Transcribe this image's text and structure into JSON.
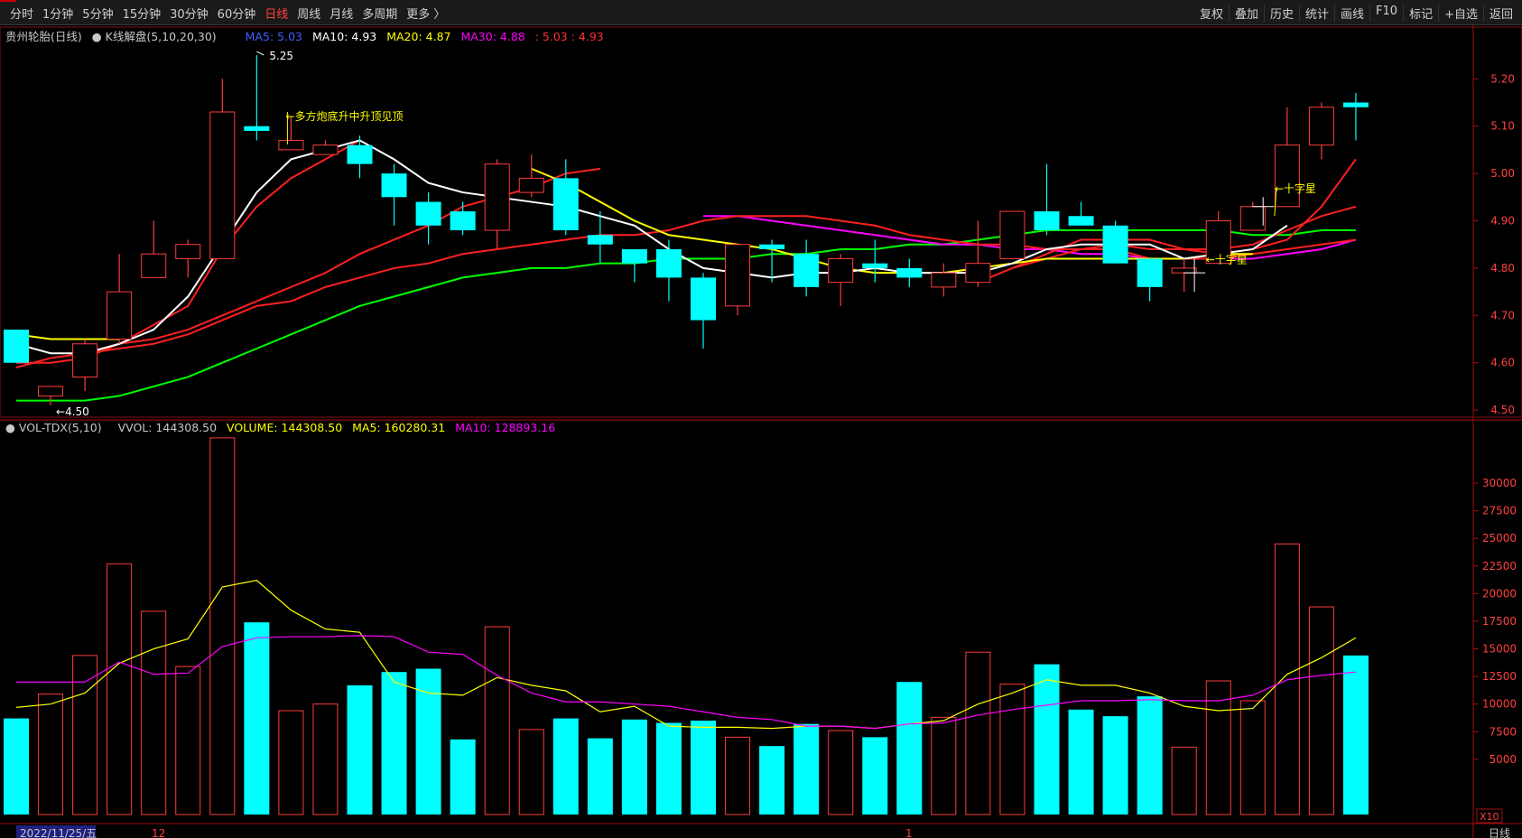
{
  "toolbar": {
    "periods": [
      "分时",
      "1分钟",
      "5分钟",
      "15分钟",
      "30分钟",
      "60分钟",
      "日线",
      "周线",
      "月线",
      "多周期",
      "更多 〉"
    ],
    "active_period": "日线",
    "tools": [
      "复权",
      "叠加",
      "历史",
      "统计",
      "画线",
      "F10",
      "标记",
      "+自选",
      "返回"
    ]
  },
  "main_legend": {
    "stock": "贵州轮胎(日线)",
    "indicator": "K线解盘(5,10,20,30)",
    "ma5": "MA5: 5.03",
    "ma10": "MA10: 4.93",
    "ma20": "MA20: 4.87",
    "ma30": "MA30: 4.88",
    "extra": ": 5.03 : 4.93"
  },
  "vol_legend": {
    "name": "VOL-TDX(5,10)",
    "vvol": "VVOL: 144308.50",
    "volume": "VOLUME: 144308.50",
    "ma5": "MA5: 160280.31",
    "ma10": "MA10: 128893.16"
  },
  "annotations": {
    "high": "5.25",
    "low": "←4.50",
    "pattern1": "←多方炮底升中升顶见顶",
    "doji1": "←十字星",
    "doji2": "←十字星"
  },
  "footer": {
    "date": "2022/11/25/五",
    "month1": "12",
    "month2": "1",
    "period_label": "日线",
    "unit": "X10"
  },
  "colors": {
    "up": "#ff3c3c",
    "down": "#00ffff",
    "ma5": "#ffffff",
    "ma10": "#ffff00",
    "ma20": "#ff00ff",
    "ma30": "#00ff00",
    "ma_red": "#ff2020"
  },
  "chart_data": {
    "type": "candlestick",
    "price_axis": {
      "ticks": [
        4.5,
        4.6,
        4.7,
        4.8,
        4.9,
        5.0,
        5.1,
        5.2
      ],
      "range": [
        4.485,
        5.275
      ]
    },
    "volume_axis": {
      "ticks": [
        5000,
        7500,
        10000,
        12500,
        15000,
        17500,
        20000,
        22500,
        25000,
        27500,
        30000
      ],
      "range": [
        0,
        34500
      ]
    },
    "candles": [
      {
        "o": 4.67,
        "h": 4.67,
        "l": 4.6,
        "c": 4.6,
        "v": 8700
      },
      {
        "o": 4.53,
        "h": 4.55,
        "l": 4.51,
        "c": 4.55,
        "v": 10900
      },
      {
        "o": 4.57,
        "h": 4.65,
        "l": 4.54,
        "c": 4.64,
        "v": 14400
      },
      {
        "o": 4.65,
        "h": 4.83,
        "l": 4.64,
        "c": 4.75,
        "v": 22700
      },
      {
        "o": 4.78,
        "h": 4.9,
        "l": 4.78,
        "c": 4.83,
        "v": 18400
      },
      {
        "o": 4.82,
        "h": 4.86,
        "l": 4.78,
        "c": 4.85,
        "v": 13400
      },
      {
        "o": 4.82,
        "h": 5.2,
        "l": 4.82,
        "c": 5.13,
        "v": 34100
      },
      {
        "o": 5.1,
        "h": 5.25,
        "l": 5.07,
        "c": 5.09,
        "v": 17400
      },
      {
        "o": 5.05,
        "h": 5.12,
        "l": 5.05,
        "c": 5.07,
        "v": 9400
      },
      {
        "o": 5.04,
        "h": 5.07,
        "l": 5.04,
        "c": 5.06,
        "v": 10000
      },
      {
        "o": 5.06,
        "h": 5.08,
        "l": 4.99,
        "c": 5.02,
        "v": 11700
      },
      {
        "o": 5.0,
        "h": 5.02,
        "l": 4.89,
        "c": 4.95,
        "v": 12900
      },
      {
        "o": 4.94,
        "h": 4.96,
        "l": 4.85,
        "c": 4.89,
        "v": 13200
      },
      {
        "o": 4.92,
        "h": 4.94,
        "l": 4.87,
        "c": 4.88,
        "v": 6800
      },
      {
        "o": 4.88,
        "h": 5.03,
        "l": 4.84,
        "c": 5.02,
        "v": 17000
      },
      {
        "o": 4.96,
        "h": 5.04,
        "l": 4.95,
        "c": 4.99,
        "v": 7700
      },
      {
        "o": 4.99,
        "h": 5.03,
        "l": 4.87,
        "c": 4.88,
        "v": 8700
      },
      {
        "o": 4.87,
        "h": 4.92,
        "l": 4.81,
        "c": 4.85,
        "v": 6900
      },
      {
        "o": 4.84,
        "h": 4.84,
        "l": 4.77,
        "c": 4.81,
        "v": 8600
      },
      {
        "o": 4.84,
        "h": 4.86,
        "l": 4.73,
        "c": 4.78,
        "v": 8300
      },
      {
        "o": 4.78,
        "h": 4.79,
        "l": 4.63,
        "c": 4.69,
        "v": 8500
      },
      {
        "o": 4.72,
        "h": 4.85,
        "l": 4.7,
        "c": 4.85,
        "v": 7000
      },
      {
        "o": 4.85,
        "h": 4.86,
        "l": 4.77,
        "c": 4.84,
        "v": 6200
      },
      {
        "o": 4.83,
        "h": 4.86,
        "l": 4.74,
        "c": 4.76,
        "v": 8200
      },
      {
        "o": 4.77,
        "h": 4.83,
        "l": 4.72,
        "c": 4.82,
        "v": 7600
      },
      {
        "o": 4.81,
        "h": 4.86,
        "l": 4.77,
        "c": 4.8,
        "v": 7000
      },
      {
        "o": 4.8,
        "h": 4.82,
        "l": 4.76,
        "c": 4.78,
        "v": 12000
      },
      {
        "o": 4.76,
        "h": 4.81,
        "l": 4.74,
        "c": 4.79,
        "v": 8800
      },
      {
        "o": 4.77,
        "h": 4.9,
        "l": 4.76,
        "c": 4.81,
        "v": 14700
      },
      {
        "o": 4.82,
        "h": 4.92,
        "l": 4.82,
        "c": 4.92,
        "v": 11800
      },
      {
        "o": 4.92,
        "h": 5.02,
        "l": 4.87,
        "c": 4.88,
        "v": 13600
      },
      {
        "o": 4.91,
        "h": 4.94,
        "l": 4.89,
        "c": 4.89,
        "v": 9500
      },
      {
        "o": 4.89,
        "h": 4.9,
        "l": 4.81,
        "c": 4.81,
        "v": 8900
      },
      {
        "o": 4.82,
        "h": 4.82,
        "l": 4.73,
        "c": 4.76,
        "v": 10700
      },
      {
        "o": 4.79,
        "h": 4.82,
        "l": 4.75,
        "c": 4.8,
        "v": 6100
      },
      {
        "o": 4.81,
        "h": 4.92,
        "l": 4.81,
        "c": 4.9,
        "v": 12100
      },
      {
        "o": 4.88,
        "h": 4.94,
        "l": 4.88,
        "c": 4.93,
        "v": 10300
      },
      {
        "o": 4.93,
        "h": 5.14,
        "l": 4.93,
        "c": 5.06,
        "v": 24500
      },
      {
        "o": 5.06,
        "h": 5.15,
        "l": 5.03,
        "c": 5.14,
        "v": 18800
      },
      {
        "o": 5.15,
        "h": 5.17,
        "l": 5.07,
        "c": 5.14,
        "v": 14400
      }
    ],
    "ma_white": [
      4.64,
      4.62,
      4.62,
      4.64,
      4.67,
      4.74,
      4.85,
      4.96,
      5.03,
      5.05,
      5.07,
      5.03,
      4.98,
      4.96,
      4.95,
      4.94,
      4.93,
      4.91,
      4.89,
      4.84,
      4.8,
      4.79,
      4.78,
      4.79,
      4.79,
      4.8,
      4.79,
      4.79,
      4.79,
      4.81,
      4.84,
      4.85,
      4.85,
      4.85,
      4.82,
      4.83,
      4.84,
      4.89,
      null,
      null
    ],
    "ma_yellow": [
      4.66,
      4.65,
      4.65,
      4.65,
      null,
      null,
      null,
      null,
      null,
      null,
      null,
      null,
      null,
      null,
      null,
      5.01,
      4.98,
      4.94,
      4.9,
      4.87,
      4.86,
      4.85,
      4.84,
      4.82,
      4.8,
      4.79,
      4.79,
      4.79,
      4.8,
      4.81,
      4.82,
      4.82,
      4.82,
      4.82,
      4.82,
      4.83,
      4.83,
      null,
      null,
      null
    ],
    "ma_red1": [
      4.6,
      4.6,
      4.61,
      4.64,
      4.68,
      4.72,
      4.84,
      4.93,
      4.99,
      5.03,
      5.07,
      null,
      null,
      null,
      null,
      null,
      null,
      null,
      null,
      null,
      null,
      null,
      null,
      null,
      null,
      null,
      null,
      null,
      null,
      4.8,
      4.83,
      4.86,
      4.86,
      4.86,
      4.84,
      4.83,
      4.84,
      4.86,
      4.93,
      5.03
    ],
    "ma_red2": [
      4.59,
      4.61,
      4.62,
      4.64,
      4.65,
      4.67,
      4.7,
      4.73,
      4.76,
      4.79,
      4.83,
      4.86,
      4.89,
      4.93,
      4.95,
      4.97,
      5.0,
      5.01,
      null,
      null,
      null,
      null,
      null,
      null,
      null,
      null,
      null,
      null,
      4.77,
      4.8,
      4.82,
      4.84,
      4.85,
      4.84,
      4.84,
      4.84,
      4.85,
      4.88,
      4.91,
      4.93
    ],
    "ma_red3": [
      null,
      null,
      4.62,
      4.63,
      4.64,
      4.66,
      4.69,
      4.72,
      4.73,
      4.76,
      4.78,
      4.8,
      4.81,
      4.83,
      4.84,
      4.85,
      4.86,
      4.87,
      4.87,
      4.88,
      4.9,
      4.91,
      4.91,
      4.91,
      4.9,
      4.89,
      4.87,
      4.86,
      4.85,
      4.85,
      4.84,
      4.84,
      4.84,
      4.82,
      4.82,
      4.82,
      4.83,
      4.84,
      4.85,
      4.86
    ],
    "ma_green": [
      4.52,
      4.52,
      4.52,
      4.53,
      4.55,
      4.57,
      4.6,
      4.63,
      4.66,
      4.69,
      4.72,
      4.74,
      4.76,
      4.78,
      4.79,
      4.8,
      4.8,
      4.81,
      4.81,
      4.82,
      4.82,
      4.82,
      4.83,
      4.83,
      4.84,
      4.84,
      4.85,
      4.85,
      4.86,
      4.87,
      4.88,
      4.88,
      4.88,
      4.88,
      4.88,
      4.88,
      4.87,
      4.87,
      4.88,
      4.88
    ],
    "ma_magenta": [
      null,
      null,
      null,
      null,
      null,
      null,
      null,
      null,
      null,
      null,
      null,
      null,
      null,
      null,
      null,
      null,
      null,
      null,
      null,
      null,
      4.91,
      4.91,
      4.9,
      4.89,
      4.88,
      4.87,
      4.86,
      4.85,
      4.85,
      4.84,
      4.84,
      4.83,
      4.83,
      4.82,
      4.82,
      4.82,
      4.82,
      4.83,
      4.84,
      4.86
    ],
    "vol_ma5": [
      9700,
      10000,
      11000,
      13700,
      15000,
      15900,
      20600,
      21200,
      18500,
      16800,
      16500,
      12000,
      11000,
      10800,
      12400,
      11700,
      11200,
      9300,
      9800,
      8000,
      7900,
      7900,
      7800,
      8000,
      8000,
      7800,
      8200,
      8500,
      10000,
      11000,
      12200,
      11700,
      11700,
      11000,
      9800,
      9400,
      9600,
      12700,
      14200,
      16000
    ],
    "vol_ma10": [
      12000,
      12000,
      12000,
      13800,
      12700,
      12800,
      15200,
      16000,
      16100,
      16100,
      16200,
      16100,
      14700,
      14500,
      12600,
      11000,
      10200,
      10200,
      10000,
      9800,
      9300,
      8800,
      8600,
      8000,
      8000,
      7800,
      8200,
      8300,
      9000,
      9500,
      9900,
      10300,
      10300,
      10400,
      10300,
      10300,
      10800,
      12200,
      12600,
      12900
    ]
  }
}
